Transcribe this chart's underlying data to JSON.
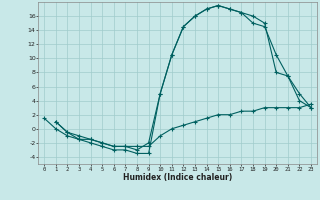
{
  "xlabel": "Humidex (Indice chaleur)",
  "bg_color": "#c8e8e8",
  "line_color": "#006060",
  "grid_color": "#a0cccc",
  "xlim": [
    -0.5,
    23.5
  ],
  "ylim": [
    -5,
    18
  ],
  "xticks": [
    0,
    1,
    2,
    3,
    4,
    5,
    6,
    7,
    8,
    9,
    10,
    11,
    12,
    13,
    14,
    15,
    16,
    17,
    18,
    19,
    20,
    21,
    22,
    23
  ],
  "yticks": [
    -4,
    -2,
    0,
    2,
    4,
    6,
    8,
    10,
    12,
    14,
    16
  ],
  "curve1_x": [
    1,
    2,
    3,
    4,
    5,
    6,
    7,
    8,
    9,
    10,
    11,
    12,
    13,
    14,
    15,
    16,
    17,
    18,
    19,
    20,
    21,
    22,
    23
  ],
  "curve1_y": [
    1,
    -0.5,
    -1.5,
    -2,
    -2.5,
    -3,
    -3,
    -3.5,
    -3.5,
    5,
    10.5,
    14.5,
    16,
    17,
    17.5,
    17,
    16.5,
    15,
    14.5,
    10.5,
    7.5,
    5,
    3
  ],
  "curve2_x": [
    1,
    2,
    3,
    4,
    5,
    6,
    7,
    8,
    9,
    10,
    11,
    12,
    13,
    14,
    15,
    16,
    17,
    18,
    19,
    20,
    21,
    22,
    23
  ],
  "curve2_y": [
    1,
    -0.5,
    -1,
    -1.5,
    -2,
    -2.5,
    -2.5,
    -3,
    -2,
    5,
    10.5,
    14.5,
    16,
    17,
    17.5,
    17,
    16.5,
    16,
    15,
    8,
    7.5,
    4,
    3
  ],
  "curve3_x": [
    0,
    1,
    2,
    3,
    4,
    5,
    6,
    7,
    8,
    9,
    10,
    11,
    12,
    13,
    14,
    15,
    16,
    17,
    18,
    19,
    20,
    21,
    22,
    23
  ],
  "curve3_y": [
    1.5,
    0,
    -1,
    -1.5,
    -1.5,
    -2,
    -2.5,
    -2.5,
    -2.5,
    -2.5,
    -1,
    0,
    0.5,
    1,
    1.5,
    2,
    2,
    2.5,
    2.5,
    3,
    3,
    3,
    3,
    3.5
  ]
}
